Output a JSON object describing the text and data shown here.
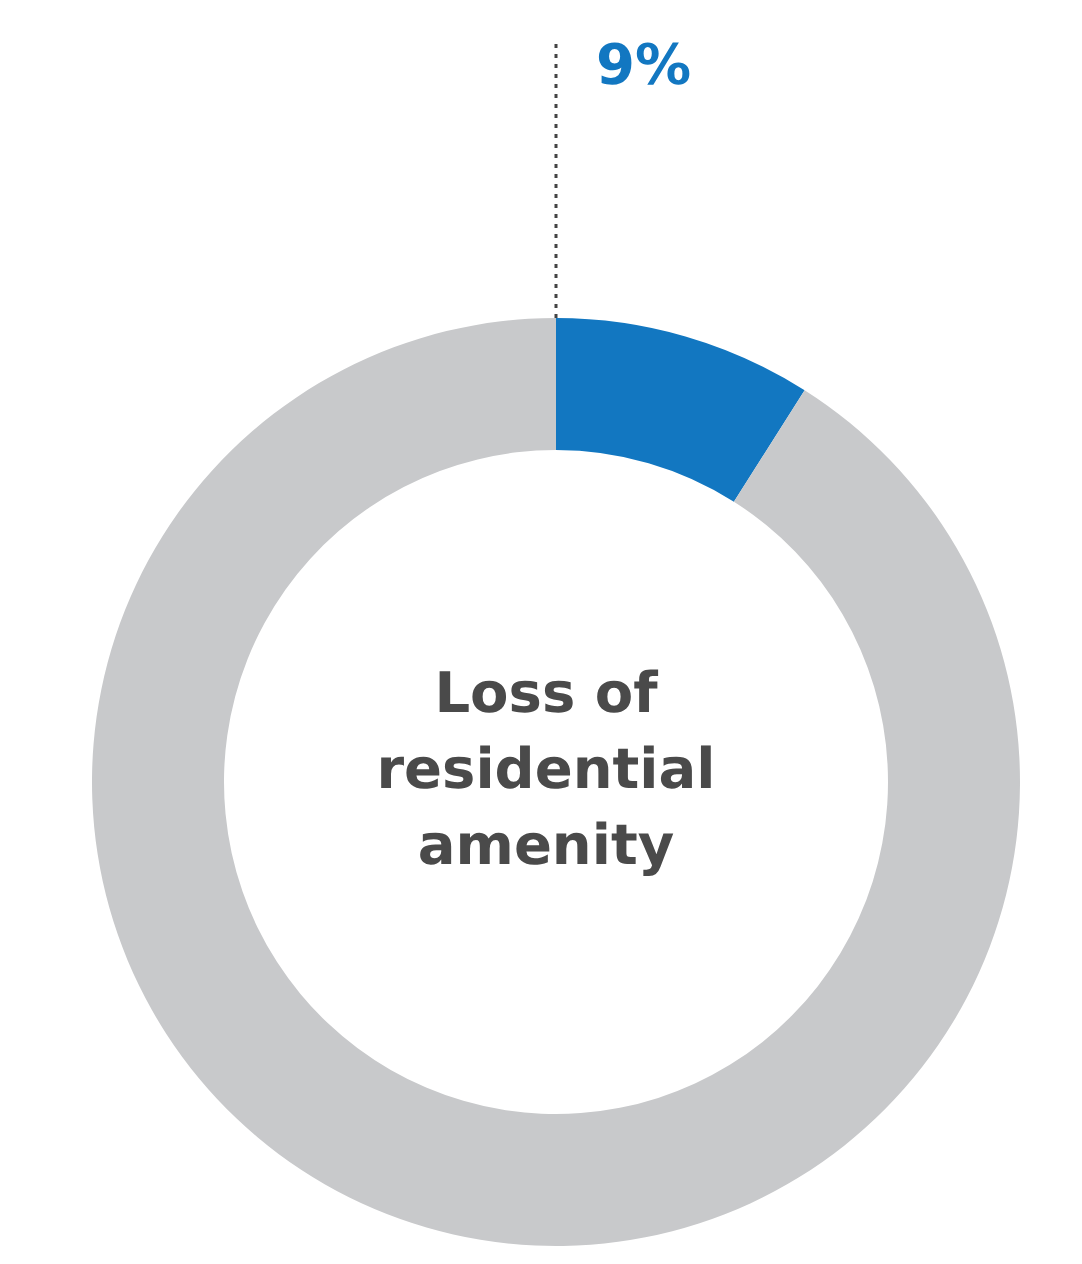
{
  "chart_data": {
    "type": "donut",
    "title": "Loss of residential amenity",
    "categories": [
      null,
      null
    ],
    "values": [
      9,
      91
    ],
    "colors": [
      "#1277c1",
      "#c8c9cb"
    ],
    "value_labels": [
      "9%",
      null
    ],
    "legend": false
  }
}
